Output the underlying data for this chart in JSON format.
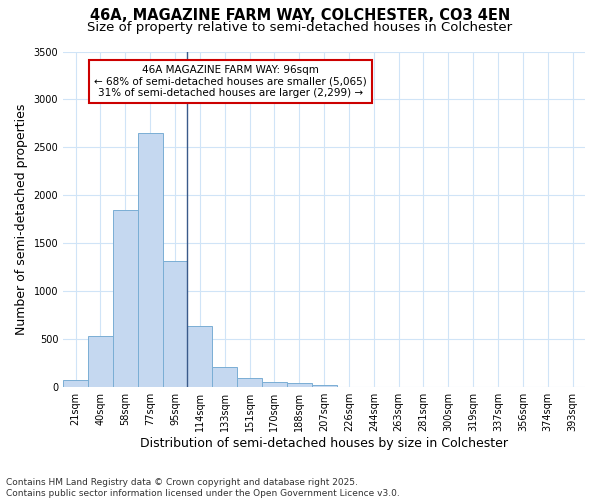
{
  "title1": "46A, MAGAZINE FARM WAY, COLCHESTER, CO3 4EN",
  "title2": "Size of property relative to semi-detached houses in Colchester",
  "xlabel": "Distribution of semi-detached houses by size in Colchester",
  "ylabel": "Number of semi-detached properties",
  "categories": [
    "21sqm",
    "40sqm",
    "58sqm",
    "77sqm",
    "95sqm",
    "114sqm",
    "133sqm",
    "151sqm",
    "170sqm",
    "188sqm",
    "207sqm",
    "226sqm",
    "244sqm",
    "263sqm",
    "281sqm",
    "300sqm",
    "319sqm",
    "337sqm",
    "356sqm",
    "374sqm",
    "393sqm"
  ],
  "values": [
    75,
    530,
    1850,
    2650,
    1320,
    640,
    210,
    100,
    55,
    40,
    18,
    6,
    3,
    2,
    1,
    1,
    0,
    0,
    0,
    0,
    0
  ],
  "bar_color": "#c5d8f0",
  "bar_edge_color": "#7aaed4",
  "vline_color": "#3a5a8a",
  "annotation_line1": "46A MAGAZINE FARM WAY: 96sqm",
  "annotation_line2": "← 68% of semi-detached houses are smaller (5,065)",
  "annotation_line3": "31% of semi-detached houses are larger (2,299) →",
  "annotation_box_color": "#cc0000",
  "ylim": [
    0,
    3500
  ],
  "yticks": [
    0,
    500,
    1000,
    1500,
    2000,
    2500,
    3000,
    3500
  ],
  "footnote": "Contains HM Land Registry data © Crown copyright and database right 2025.\nContains public sector information licensed under the Open Government Licence v3.0.",
  "bg_color": "#ffffff",
  "plot_bg_color": "#ffffff",
  "grid_color": "#d0e4f7",
  "title_fontsize": 10.5,
  "subtitle_fontsize": 9.5,
  "axis_label_fontsize": 9,
  "tick_fontsize": 7,
  "footnote_fontsize": 6.5,
  "annotation_fontsize": 7.5
}
